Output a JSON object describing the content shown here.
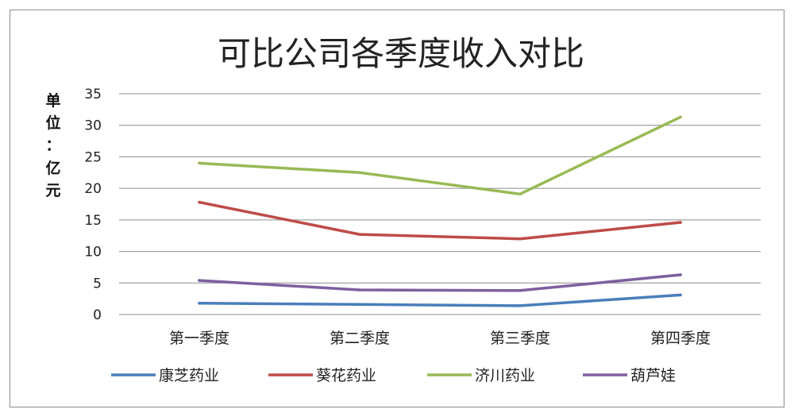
{
  "chart_data": {
    "type": "line",
    "title": "可比公司各季度收入对比",
    "ylabel_chars": [
      "单",
      "位",
      "：",
      "亿",
      "元"
    ],
    "categories": [
      "第一季度",
      "第二季度",
      "第三季度",
      "第四季度"
    ],
    "ylim": [
      0,
      35
    ],
    "yticks": [
      0,
      5,
      10,
      15,
      20,
      25,
      30,
      35
    ],
    "grid": true,
    "legend_position": "bottom",
    "series": [
      {
        "name": "康芝药业",
        "color": "#4a7ebb",
        "values": [
          1.8,
          1.6,
          1.4,
          3.1
        ]
      },
      {
        "name": "葵花药业",
        "color": "#be4b48",
        "values": [
          17.8,
          12.7,
          12.0,
          14.6
        ]
      },
      {
        "name": "济川药业",
        "color": "#98b954",
        "values": [
          24.0,
          22.5,
          19.1,
          31.3
        ]
      },
      {
        "name": "葫芦娃",
        "color": "#7d60a0",
        "values": [
          5.4,
          3.9,
          3.8,
          6.3
        ]
      }
    ]
  }
}
